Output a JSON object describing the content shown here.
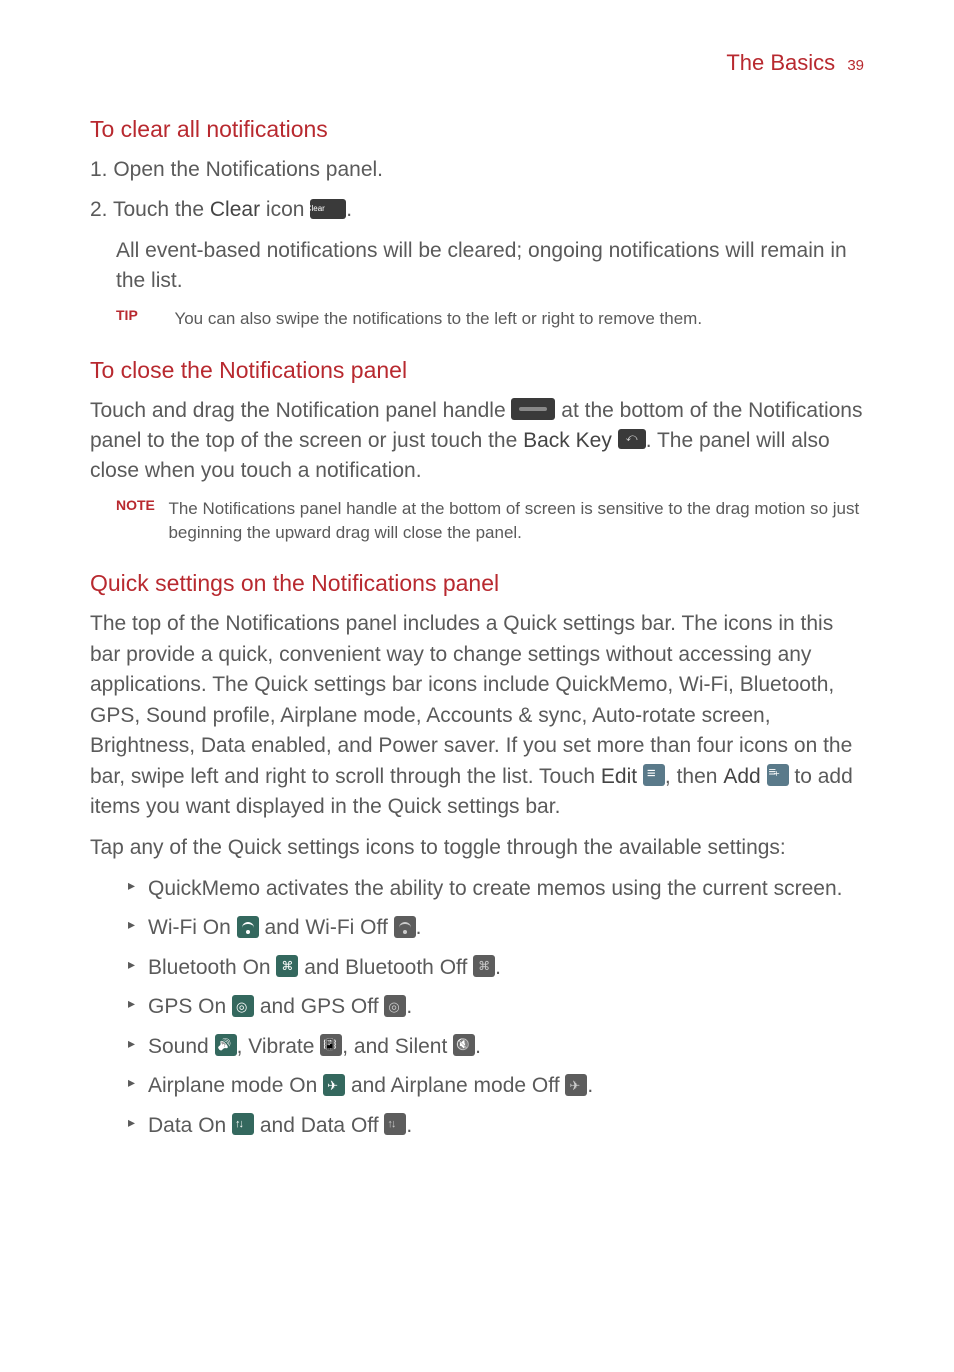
{
  "header": {
    "title": "The Basics",
    "page_number": "39"
  },
  "colors": {
    "accent": "#b8292f",
    "body": "#5a5a5a",
    "icon_on": "#34685e",
    "icon_off": "#5d5d5d",
    "icon_dark": "#3a3a3a"
  },
  "section1": {
    "heading": "To clear all notifications",
    "step1": "1. Open the Notifications panel.",
    "step2_pre": "2. Touch the ",
    "step2_bold": "Clear",
    "step2_post": " icon ",
    "step2_end": ".",
    "step2_sub": "All event-based notifications will be cleared; ongoing notifications will remain in the list.",
    "tip_label": "TIP",
    "tip_text": "You can also swipe the notifications to the left or right to remove them."
  },
  "section2": {
    "heading": "To close the Notifications panel",
    "p1_a": "Touch and drag the Notification panel handle ",
    "p1_b": " at the bottom of the Notifications panel to the top of the screen or just touch the ",
    "p1_bold": "Back Key",
    "p1_c": " ",
    "p1_d": ". The panel will also close when you touch a notification.",
    "note_label": "NOTE",
    "note_text": "The Notifications panel handle at the bottom of screen is sensitive to the drag motion so just beginning the upward drag will close the panel."
  },
  "section3": {
    "heading": "Quick settings on the Notifications panel",
    "p1_a": "The top of the Notifications panel includes a Quick settings bar. The icons in this bar provide a quick, convenient way to change settings without accessing any applications. The Quick settings bar icons include QuickMemo, Wi-Fi, Bluetooth, GPS, Sound profile, Airplane mode, Accounts & sync, Auto-rotate screen, Brightness, Data enabled, and Power saver. If you set more than four icons on the bar, swipe left and right to scroll through the list. Touch ",
    "p1_edit": "Edit",
    "p1_b": " ",
    "p1_c": ", then ",
    "p1_add": "Add",
    "p1_d": " ",
    "p1_e": " to add items you want displayed in the Quick settings bar.",
    "p2": "Tap any of the Quick settings icons to toggle through the available settings:",
    "bullets": {
      "b1": "QuickMemo activates the ability to create memos using the current screen.",
      "b2_a": "Wi-Fi On ",
      "b2_b": " and Wi-Fi Off ",
      "b2_c": ".",
      "b3_a": "Bluetooth On ",
      "b3_b": " and Bluetooth Off ",
      "b3_c": ".",
      "b4_a": "GPS On ",
      "b4_b": " and GPS Off ",
      "b4_c": ".",
      "b5_a": "Sound ",
      "b5_b": ", Vibrate ",
      "b5_c": ", and Silent ",
      "b5_d": ".",
      "b6_a": "Airplane mode On ",
      "b6_b": " and Airplane mode Off ",
      "b6_c": ".",
      "b7_a": "Data On ",
      "b7_b": " and Data Off ",
      "b7_c": "."
    }
  }
}
